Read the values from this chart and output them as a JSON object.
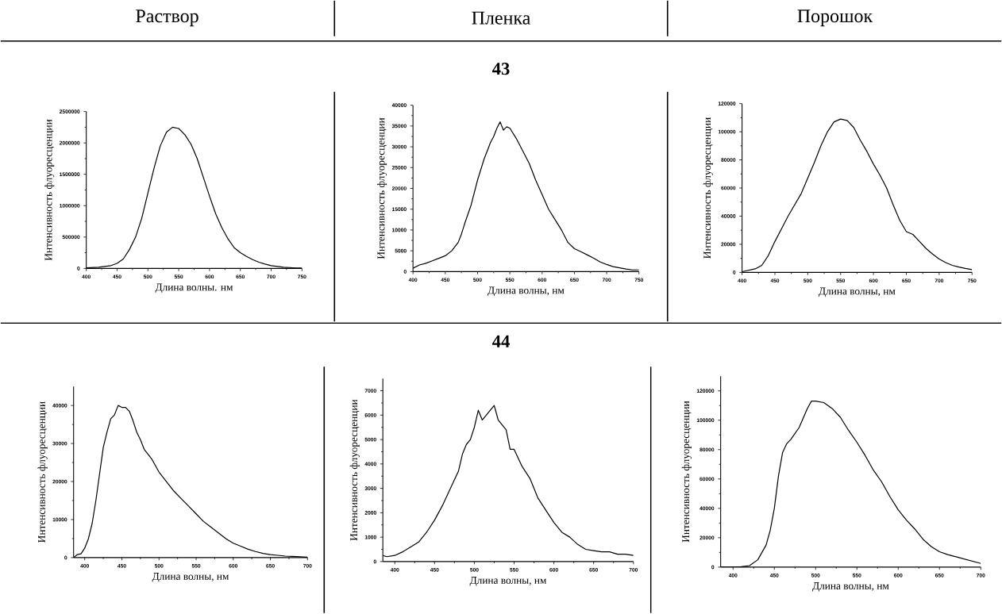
{
  "chart_data": [
    {
      "type": "line",
      "title": "Раствор",
      "xlabel": "Длина волны. нм",
      "ylabel": "Интенсивность флуоресценции",
      "color": "#000000",
      "xlim": [
        400,
        750
      ],
      "ylim": [
        0,
        2500000
      ],
      "xticks": [
        400,
        450,
        500,
        550,
        600,
        650,
        700,
        750
      ],
      "yticks": [
        0,
        500000,
        1000000,
        1500000,
        2000000,
        2500000
      ],
      "x": [
        400,
        420,
        440,
        450,
        460,
        470,
        480,
        490,
        500,
        510,
        520,
        530,
        540,
        550,
        560,
        570,
        580,
        590,
        600,
        610,
        620,
        630,
        640,
        650,
        660,
        670,
        680,
        690,
        700,
        720,
        740,
        750
      ],
      "values": [
        10000,
        20000,
        45000,
        80000,
        150000,
        300000,
        500000,
        800000,
        1200000,
        1600000,
        1950000,
        2170000,
        2250000,
        2230000,
        2130000,
        1980000,
        1750000,
        1450000,
        1150000,
        870000,
        650000,
        470000,
        330000,
        250000,
        190000,
        140000,
        100000,
        70000,
        45000,
        20000,
        8000,
        5000
      ]
    },
    {
      "type": "line",
      "title": "Пленка",
      "subtitle": "43",
      "xlabel": "Длина волны, нм",
      "ylabel": "Интенсивность флуоресценции",
      "color": "#000000",
      "xlim": [
        400,
        750
      ],
      "ylim": [
        0,
        40000
      ],
      "xticks": [
        400,
        450,
        500,
        550,
        600,
        650,
        700,
        750
      ],
      "yticks": [
        0,
        5000,
        10000,
        15000,
        20000,
        25000,
        30000,
        35000,
        40000
      ],
      "x": [
        400,
        410,
        420,
        430,
        440,
        450,
        460,
        470,
        475,
        480,
        490,
        500,
        510,
        520,
        525,
        530,
        535,
        540,
        545,
        550,
        560,
        570,
        580,
        590,
        600,
        610,
        620,
        630,
        640,
        650,
        660,
        670,
        680,
        690,
        700,
        710,
        720,
        730,
        740,
        750
      ],
      "values": [
        800,
        1600,
        2000,
        2600,
        3200,
        3800,
        5000,
        7000,
        9000,
        11500,
        16000,
        22000,
        27000,
        31000,
        32500,
        34500,
        36000,
        34000,
        34800,
        34500,
        32000,
        29000,
        26000,
        22000,
        18500,
        15000,
        12500,
        10000,
        7000,
        5500,
        4800,
        4000,
        3200,
        2300,
        1700,
        1200,
        900,
        600,
        400,
        400
      ]
    },
    {
      "type": "line",
      "title": "Порошок",
      "xlabel": "Длина волны, нм",
      "ylabel": "Интенсивность флуоресценции",
      "color": "#000000",
      "xlim": [
        400,
        750
      ],
      "ylim": [
        0,
        120000
      ],
      "xticks": [
        400,
        450,
        500,
        550,
        600,
        650,
        700,
        750
      ],
      "yticks": [
        0,
        20000,
        40000,
        60000,
        80000,
        100000,
        120000
      ],
      "x": [
        400,
        420,
        430,
        440,
        450,
        460,
        470,
        480,
        490,
        500,
        510,
        520,
        530,
        540,
        550,
        560,
        570,
        580,
        590,
        600,
        610,
        620,
        630,
        640,
        650,
        660,
        670,
        680,
        690,
        700,
        710,
        720,
        730,
        740,
        750
      ],
      "values": [
        500,
        2500,
        5000,
        12000,
        22000,
        31000,
        40000,
        48000,
        56000,
        67000,
        78000,
        90000,
        100000,
        107000,
        109000,
        108000,
        103000,
        94000,
        86000,
        77000,
        69000,
        60000,
        48000,
        37000,
        29000,
        27000,
        22000,
        17000,
        13000,
        9500,
        7000,
        5000,
        3800,
        2800,
        2000
      ]
    },
    {
      "type": "line",
      "xlabel": "Длина волны, нм",
      "ylabel": "Интенсивность флуоресценции",
      "color": "#000000",
      "xlim": [
        385,
        700
      ],
      "ylim": [
        0,
        45000
      ],
      "xticks": [
        400,
        450,
        500,
        550,
        600,
        650,
        700
      ],
      "yticks": [
        0,
        10000,
        20000,
        30000,
        40000
      ],
      "x": [
        385,
        390,
        395,
        400,
        405,
        410,
        415,
        420,
        425,
        430,
        435,
        440,
        445,
        450,
        455,
        460,
        465,
        470,
        475,
        480,
        490,
        500,
        510,
        520,
        530,
        540,
        550,
        560,
        570,
        580,
        590,
        600,
        610,
        620,
        630,
        640,
        650,
        660,
        670,
        680,
        690,
        700
      ],
      "values": [
        0,
        800,
        1000,
        2500,
        5000,
        9000,
        15000,
        22000,
        29000,
        33000,
        36500,
        37500,
        40000,
        39500,
        39500,
        38500,
        36000,
        33000,
        31000,
        28500,
        26000,
        22500,
        20000,
        17500,
        15500,
        13500,
        11500,
        9500,
        8000,
        6500,
        5000,
        3800,
        3000,
        2200,
        1600,
        1100,
        800,
        600,
        400,
        300,
        200,
        100
      ]
    },
    {
      "type": "line",
      "subtitle": "44",
      "xlabel": "Длина волны, нм",
      "ylabel": "Интенсивность флуоресценции",
      "color": "#000000",
      "xlim": [
        385,
        700
      ],
      "ylim": [
        0,
        7500
      ],
      "xticks": [
        400,
        450,
        500,
        550,
        600,
        650,
        700
      ],
      "yticks": [
        0,
        1000,
        2000,
        3000,
        4000,
        5000,
        6000,
        7000
      ],
      "x": [
        385,
        390,
        400,
        410,
        420,
        430,
        440,
        450,
        460,
        470,
        480,
        485,
        490,
        495,
        500,
        505,
        510,
        515,
        520,
        525,
        530,
        540,
        545,
        550,
        560,
        570,
        580,
        590,
        600,
        610,
        620,
        630,
        640,
        650,
        660,
        670,
        680,
        690,
        700
      ],
      "values": [
        250,
        200,
        250,
        400,
        600,
        800,
        1200,
        1700,
        2300,
        3000,
        3700,
        4400,
        4800,
        5000,
        5500,
        6200,
        5800,
        6000,
        6200,
        6400,
        5800,
        5400,
        4600,
        4600,
        3900,
        3400,
        2600,
        2100,
        1600,
        1200,
        1000,
        700,
        500,
        450,
        400,
        400,
        300,
        300,
        250
      ]
    },
    {
      "type": "line",
      "xlabel": "Длина волны, нм",
      "ylabel": "Интенсивность флуоресценции",
      "color": "#000000",
      "xlim": [
        385,
        700
      ],
      "ylim": [
        0,
        130000
      ],
      "xticks": [
        400,
        450,
        500,
        550,
        600,
        650,
        700
      ],
      "yticks": [
        0,
        20000,
        40000,
        60000,
        80000,
        100000,
        120000
      ],
      "x": [
        385,
        400,
        410,
        420,
        430,
        440,
        445,
        450,
        455,
        460,
        465,
        470,
        480,
        490,
        495,
        500,
        510,
        520,
        530,
        540,
        550,
        560,
        570,
        580,
        590,
        600,
        610,
        620,
        630,
        640,
        650,
        660,
        670,
        680,
        690,
        700
      ],
      "values": [
        0,
        0,
        300,
        1000,
        5000,
        15000,
        25000,
        40000,
        62000,
        78000,
        84000,
        87000,
        95000,
        108000,
        113000,
        113000,
        112000,
        108000,
        102000,
        93000,
        85000,
        76000,
        66000,
        58000,
        48000,
        39000,
        32000,
        26000,
        19000,
        14000,
        10500,
        8500,
        7000,
        5500,
        4000,
        2500
      ]
    }
  ]
}
